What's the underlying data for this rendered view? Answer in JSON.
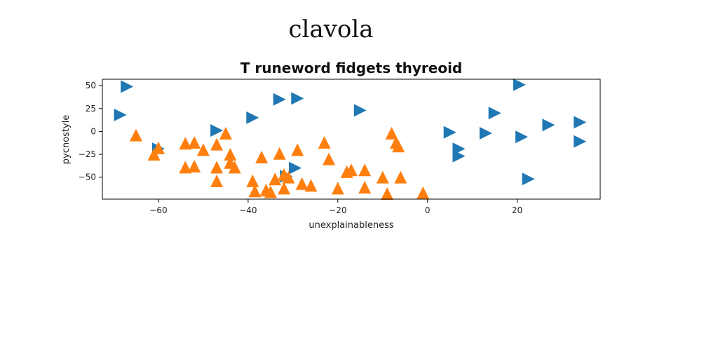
{
  "suptitle": "clavola",
  "chart_data": {
    "type": "scatter",
    "title": "T runeword fidgets thyreoid",
    "xlabel": "unexplainableness",
    "ylabel": "pycnostyle",
    "xlim": [
      -72.5,
      38.5
    ],
    "ylim": [
      -74,
      57
    ],
    "xticks": [
      -60,
      -40,
      -20,
      0,
      20
    ],
    "yticks": [
      -50,
      -25,
      0,
      25,
      50
    ],
    "grid": false,
    "series": [
      {
        "marker": "triangle-right",
        "color": "#1f77b4",
        "points": [
          [
            -67,
            49
          ],
          [
            -68.5,
            18
          ],
          [
            -47,
            1
          ],
          [
            -60,
            -19
          ],
          [
            -39,
            15
          ],
          [
            -33,
            35
          ],
          [
            -29,
            36
          ],
          [
            -15,
            23
          ],
          [
            -29.5,
            -40
          ],
          [
            -31.5,
            -49
          ],
          [
            5,
            -1
          ],
          [
            7,
            -19
          ],
          [
            7,
            -27
          ],
          [
            13,
            -2
          ],
          [
            15,
            20
          ],
          [
            20.5,
            51
          ],
          [
            21,
            -6
          ],
          [
            22.5,
            -52
          ],
          [
            27,
            7
          ],
          [
            34,
            10
          ],
          [
            34,
            -11
          ]
        ]
      },
      {
        "marker": "triangle-up",
        "color": "#ff7f0e",
        "points": [
          [
            -65,
            -4
          ],
          [
            -61,
            -25
          ],
          [
            -60,
            -18
          ],
          [
            -54,
            -13
          ],
          [
            -54,
            -39
          ],
          [
            -52,
            -12
          ],
          [
            -52,
            -38
          ],
          [
            -50,
            -20
          ],
          [
            -47,
            -14
          ],
          [
            -47,
            -39
          ],
          [
            -47,
            -54
          ],
          [
            -45,
            -2
          ],
          [
            -44,
            -25
          ],
          [
            -44,
            -34
          ],
          [
            -43,
            -39
          ],
          [
            -39,
            -54
          ],
          [
            -38.5,
            -65
          ],
          [
            -37,
            -28
          ],
          [
            -36,
            -64
          ],
          [
            -35,
            -66
          ],
          [
            -34,
            -52
          ],
          [
            -33,
            -24
          ],
          [
            -32,
            -62
          ],
          [
            -32,
            -47
          ],
          [
            -31,
            -50
          ],
          [
            -29,
            -20
          ],
          [
            -28,
            -57
          ],
          [
            -26,
            -59
          ],
          [
            -23,
            -12
          ],
          [
            -22,
            -30
          ],
          [
            -20,
            -62
          ],
          [
            -18,
            -44
          ],
          [
            -17,
            -42
          ],
          [
            -14,
            -61
          ],
          [
            -14,
            -42
          ],
          [
            -10,
            -50
          ],
          [
            -9,
            -68
          ],
          [
            -8,
            -2
          ],
          [
            -7,
            -12
          ],
          [
            -6.5,
            -16
          ],
          [
            -6,
            -50
          ],
          [
            -1,
            -67
          ]
        ]
      }
    ]
  }
}
